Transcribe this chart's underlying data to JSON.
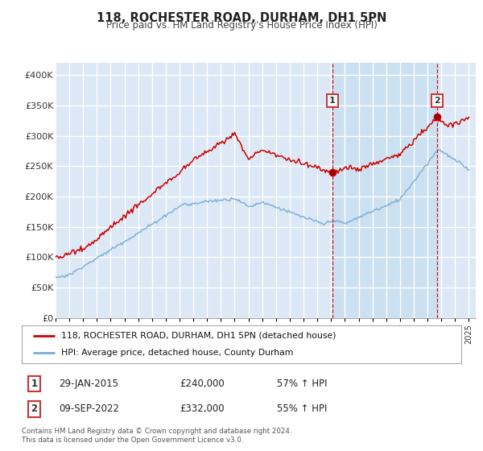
{
  "title": "118, ROCHESTER ROAD, DURHAM, DH1 5PN",
  "subtitle": "Price paid vs. HM Land Registry's House Price Index (HPI)",
  "red_label": "118, ROCHESTER ROAD, DURHAM, DH1 5PN (detached house)",
  "blue_label": "HPI: Average price, detached house, County Durham",
  "annotation1_date": "29-JAN-2015",
  "annotation1_price": "£240,000",
  "annotation1_hpi": "57% ↑ HPI",
  "annotation1_year": 2015.08,
  "annotation1_value": 240000,
  "annotation2_date": "09-SEP-2022",
  "annotation2_price": "£332,000",
  "annotation2_hpi": "55% ↑ HPI",
  "annotation2_year": 2022.69,
  "annotation2_value": 332000,
  "footer1": "Contains HM Land Registry data © Crown copyright and database right 2024.",
  "footer2": "This data is licensed under the Open Government Licence v3.0.",
  "ylim": [
    0,
    420000
  ],
  "yticks": [
    0,
    50000,
    100000,
    150000,
    200000,
    250000,
    300000,
    350000,
    400000
  ],
  "ytick_labels": [
    "£0",
    "£50K",
    "£100K",
    "£150K",
    "£200K",
    "£250K",
    "£300K",
    "£350K",
    "£400K"
  ],
  "plot_bg_color": "#dce8f5",
  "red_color": "#cc0000",
  "blue_color": "#7aacd4",
  "shade_color": "#c8dff0",
  "grid_color": "#ffffff",
  "title_color": "#222222",
  "subtitle_color": "#444444"
}
